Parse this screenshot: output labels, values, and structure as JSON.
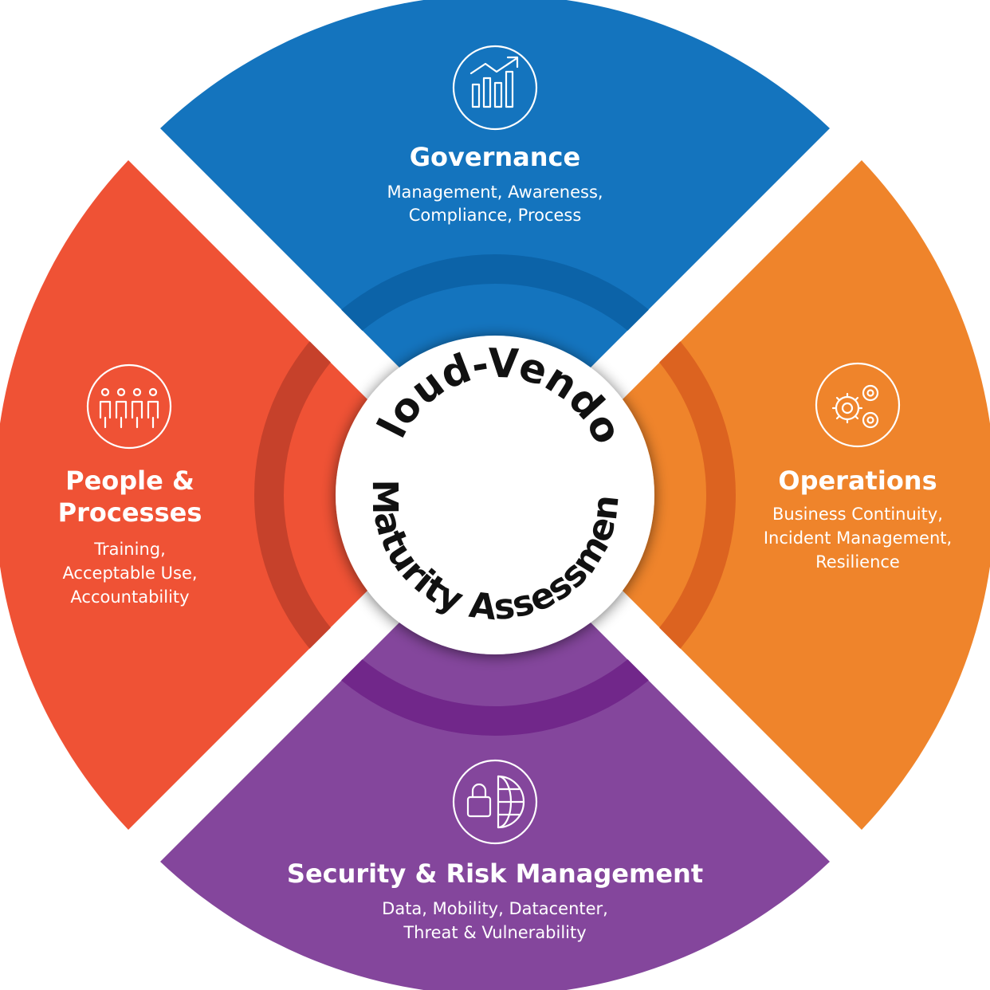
{
  "center": {
    "line1": "Cloud-Vendor",
    "line2": "Maturity Assessment"
  },
  "segments": {
    "governance": {
      "title": "Governance",
      "sub": [
        "Management, Awareness,",
        "Compliance, Process"
      ],
      "color": "#1474be",
      "ring_color": "#0c63a8",
      "icon": "growth-chart-icon"
    },
    "operations": {
      "title": "Operations",
      "sub": [
        "Business Continuity,",
        "Incident Management,",
        "Resilience"
      ],
      "color": "#ef842b",
      "ring_color": "#dc6320",
      "icon": "gears-icon"
    },
    "security": {
      "title": "Security & Risk Management",
      "sub": [
        "Data, Mobility, Datacenter,",
        "Threat & Vulnerability"
      ],
      "color": "#84469c",
      "ring_color": "#71278a",
      "icon": "globe-lock-icon"
    },
    "people": {
      "title": [
        "People &",
        "Processes"
      ],
      "sub": [
        "Training,",
        "Acceptable Use,",
        "Accountability"
      ],
      "color": "#ef5235",
      "ring_color": "#c6412b",
      "icon": "people-icon"
    }
  }
}
